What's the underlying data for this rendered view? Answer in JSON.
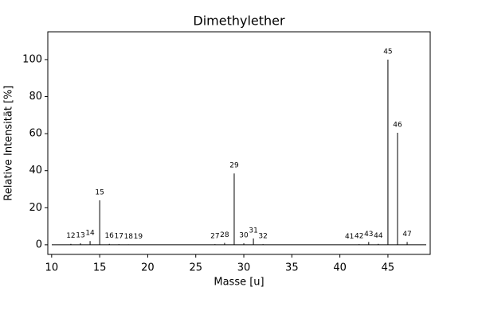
{
  "chart_data": {
    "type": "stem",
    "title": "Dimethylether",
    "x_label": "Masse [u]",
    "y_label": "Relative Intensität [%]",
    "x": [
      12,
      13,
      14,
      15,
      16,
      17,
      18,
      19,
      27,
      28,
      29,
      30,
      31,
      32,
      41,
      42,
      43,
      44,
      45,
      46,
      47
    ],
    "values": [
      0.5,
      0.8,
      2,
      24,
      0.5,
      0.3,
      0.2,
      0.1,
      0.3,
      1,
      38.5,
      0.8,
      3.4,
      0.3,
      0.1,
      0.3,
      1.5,
      0.5,
      100,
      60.5,
      1.5
    ],
    "color": "#000000",
    "xlim": [
      9.6,
      49.4
    ],
    "xticks": [
      10,
      15,
      20,
      25,
      30,
      35,
      40,
      45
    ],
    "ylim": [
      -5.2,
      115
    ],
    "yticks": [
      0,
      20,
      40,
      60,
      80,
      100
    ]
  }
}
